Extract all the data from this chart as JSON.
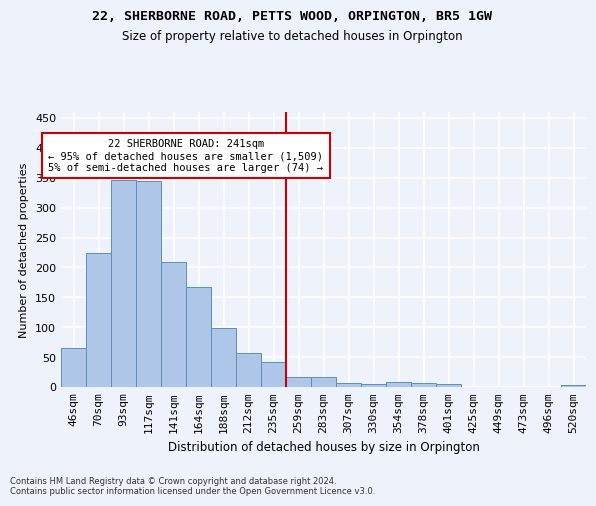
{
  "title1": "22, SHERBORNE ROAD, PETTS WOOD, ORPINGTON, BR5 1GW",
  "title2": "Size of property relative to detached houses in Orpington",
  "xlabel": "Distribution of detached houses by size in Orpington",
  "ylabel": "Number of detached properties",
  "footer1": "Contains HM Land Registry data © Crown copyright and database right 2024.",
  "footer2": "Contains public sector information licensed under the Open Government Licence v3.0.",
  "bar_labels": [
    "46sqm",
    "70sqm",
    "93sqm",
    "117sqm",
    "141sqm",
    "164sqm",
    "188sqm",
    "212sqm",
    "235sqm",
    "259sqm",
    "283sqm",
    "307sqm",
    "330sqm",
    "354sqm",
    "378sqm",
    "401sqm",
    "425sqm",
    "449sqm",
    "473sqm",
    "496sqm",
    "520sqm"
  ],
  "bar_values": [
    66,
    224,
    347,
    345,
    209,
    167,
    98,
    57,
    42,
    16,
    16,
    7,
    5,
    8,
    6,
    5,
    0,
    0,
    0,
    0,
    4
  ],
  "bar_color": "#aec6e8",
  "bar_edge_color": "#5a8fc0",
  "highlight_index": 8,
  "annotation_title": "22 SHERBORNE ROAD: 241sqm",
  "annotation_line1": "← 95% of detached houses are smaller (1,509)",
  "annotation_line2": "5% of semi-detached houses are larger (74) →",
  "annotation_box_color": "#ffffff",
  "annotation_border_color": "#cc0000",
  "vline_color": "#cc0000",
  "background_color": "#eef2fa",
  "grid_color": "#ffffff",
  "ylim": [
    0,
    460
  ],
  "yticks": [
    0,
    50,
    100,
    150,
    200,
    250,
    300,
    350,
    400,
    450
  ]
}
